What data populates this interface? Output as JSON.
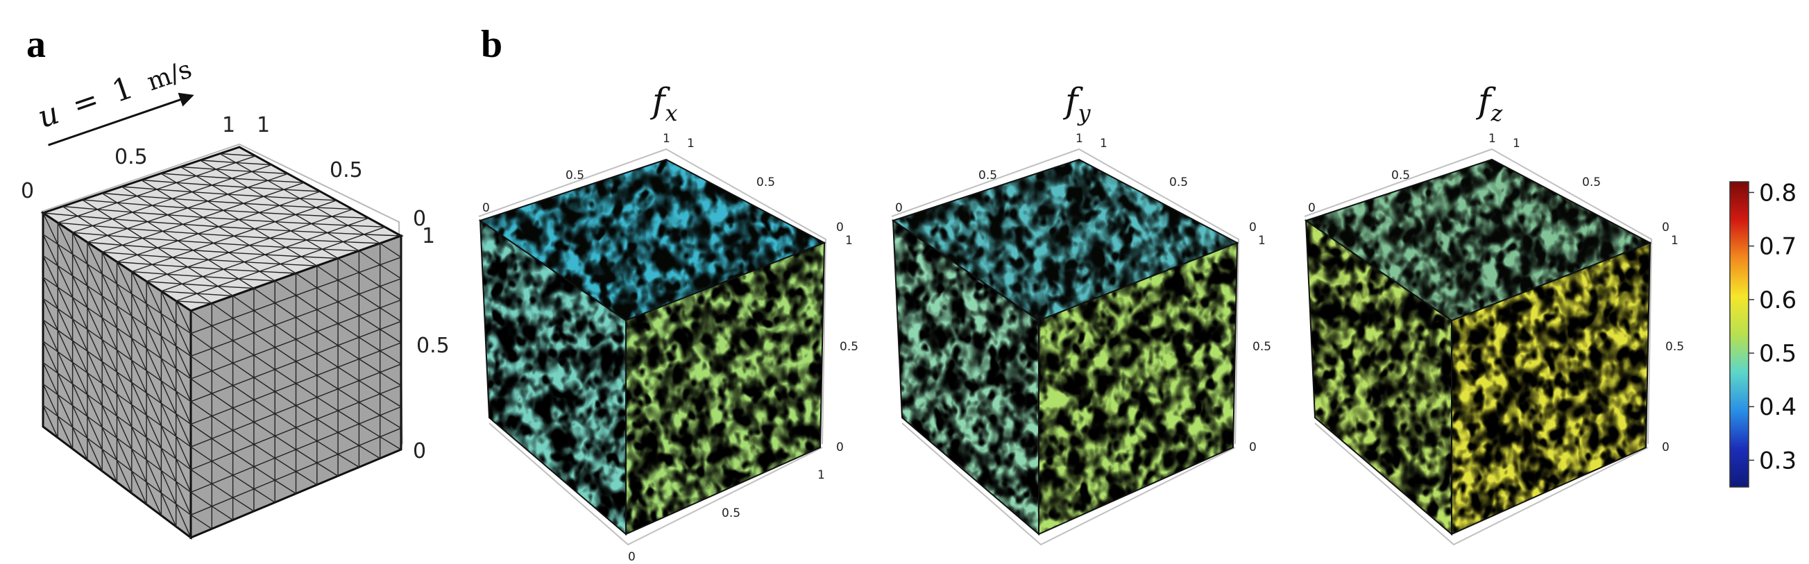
{
  "panels": {
    "a": {
      "label": "a",
      "velocity": {
        "symbol": "u",
        "equals": "=",
        "value": "1",
        "unit": "m/s"
      },
      "ticks": {
        "top_left": "0",
        "top_half": "0.5",
        "top_one": "1",
        "right_one": "1",
        "right_half": "0.5",
        "right_zero_top": "0",
        "vert_one": "1",
        "vert_half": "0.5",
        "vert_zero": "0"
      }
    },
    "b": {
      "label": "b",
      "cubes": [
        {
          "symbol": "f",
          "subscript": "x"
        },
        {
          "symbol": "f",
          "subscript": "y"
        },
        {
          "symbol": "f",
          "subscript": "z"
        }
      ],
      "ticks": {
        "zero": "0",
        "half": "0.5",
        "one": "1"
      }
    }
  },
  "colorbar": {
    "ticks": [
      "0.8",
      "0.7",
      "0.6",
      "0.5",
      "0.4",
      "0.3"
    ],
    "colors": [
      "#7a0a0a",
      "#d11a12",
      "#f28a1e",
      "#f5e62a",
      "#b8e050",
      "#5cd6c8",
      "#2a8fe6",
      "#1b2db8",
      "#101a7a"
    ],
    "range": [
      0.25,
      0.82
    ]
  },
  "field_colors": {
    "fx": [
      "#3ec9e6",
      "#77d2c2",
      "#a5dd72",
      "#c9e34e",
      "#eee83a",
      "#2f6fe0"
    ],
    "fy": [
      "#5fd0d8",
      "#8fd7b0",
      "#aee06a",
      "#d6e443",
      "#efe53a",
      "#e04a20"
    ],
    "fz": [
      "#8fd8a8",
      "#b8e064",
      "#e2e23e",
      "#f3c23a",
      "#e88a2a",
      "#c9261a"
    ]
  }
}
